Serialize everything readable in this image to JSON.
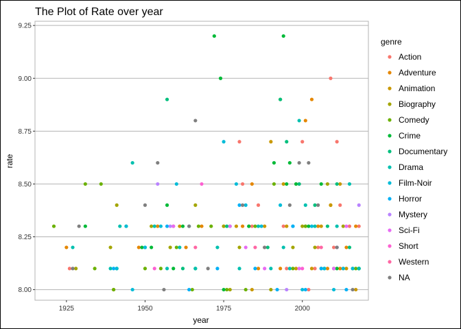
{
  "chart_data": {
    "type": "scatter",
    "title": "The Plot of Rate over year",
    "xlabel": "year",
    "ylabel": "rate",
    "xlim": [
      1915,
      2021
    ],
    "ylim": [
      7.95,
      9.27
    ],
    "xticks": [
      1925,
      1950,
      1975,
      2000
    ],
    "xtick_labels": [
      "1925",
      "1950",
      "1975",
      "2000"
    ],
    "yticks": [
      8.0,
      8.25,
      8.5,
      8.75,
      9.0,
      9.25
    ],
    "ytick_labels": [
      "8.00",
      "8.25",
      "8.50",
      "8.75",
      "9.00",
      "9.25"
    ],
    "grid": true,
    "legend": {
      "title": "genre",
      "position": "right",
      "entries": [
        "Action",
        "Adventure",
        "Animation",
        "Biography",
        "Comedy",
        "Crime",
        "Documentary",
        "Drama",
        "Film-Noir",
        "Horror",
        "Mystery",
        "Sci-Fi",
        "Short",
        "Western",
        "NA"
      ]
    },
    "colors": {
      "Action": "#F8766D",
      "Adventure": "#E58700",
      "Animation": "#C99800",
      "Biography": "#A3A500",
      "Comedy": "#6BB100",
      "Crime": "#00BA38",
      "Documentary": "#00BF7D",
      "Drama": "#00C0AF",
      "Film-Noir": "#00BCD8",
      "Horror": "#00B0F6",
      "Mystery": "#B983FF",
      "Sci-Fi": "#E76BF3",
      "Short": "#FD61D1",
      "Western": "#FF67A4",
      "NA": "#7F7F7F"
    },
    "series": [
      {
        "name": "Action",
        "points": [
          [
            1926,
            8.1
          ],
          [
            1980,
            8.7
          ],
          [
            1981,
            8.5
          ],
          [
            1984,
            8.3
          ],
          [
            1986,
            8.4
          ],
          [
            1988,
            8.2
          ],
          [
            1994,
            8.3
          ],
          [
            1995,
            8.1
          ],
          [
            1999,
            8.5
          ],
          [
            2000,
            8.7
          ],
          [
            2002,
            8.0
          ],
          [
            2004,
            8.1
          ],
          [
            2005,
            8.2
          ],
          [
            2009,
            9.0
          ],
          [
            2010,
            8.2
          ],
          [
            2011,
            8.7
          ],
          [
            2012,
            8.4
          ],
          [
            2013,
            8.1
          ],
          [
            2015,
            8.3
          ],
          [
            2018,
            8.3
          ]
        ]
      },
      {
        "name": "Adventure",
        "points": [
          [
            1925,
            8.2
          ],
          [
            1940,
            8.0
          ],
          [
            1948,
            8.2
          ],
          [
            1954,
            8.3
          ],
          [
            1959,
            8.3
          ],
          [
            1963,
            8.2
          ],
          [
            1968,
            8.3
          ],
          [
            1975,
            8.3
          ],
          [
            1981,
            8.3
          ],
          [
            1984,
            8.5
          ],
          [
            1986,
            8.1
          ],
          [
            1993,
            8.1
          ],
          [
            2001,
            8.8
          ],
          [
            2003,
            8.9
          ],
          [
            2005,
            8.3
          ],
          [
            2008,
            8.1
          ],
          [
            2009,
            8.4
          ],
          [
            2012,
            8.1
          ],
          [
            2014,
            8.2
          ],
          [
            2017,
            8.3
          ]
        ]
      },
      {
        "name": "Animation",
        "points": [
          [
            1961,
            8.3
          ],
          [
            1979,
            8.3
          ],
          [
            1984,
            8.0
          ],
          [
            1988,
            8.3
          ],
          [
            1990,
            8.7
          ],
          [
            1994,
            8.5
          ],
          [
            1995,
            8.3
          ],
          [
            1998,
            8.1
          ],
          [
            2001,
            8.3
          ],
          [
            2003,
            8.1
          ],
          [
            2006,
            8.3
          ],
          [
            2009,
            8.4
          ],
          [
            2012,
            8.5
          ],
          [
            2014,
            8.1
          ],
          [
            2017,
            8.0
          ]
        ]
      },
      {
        "name": "Biography",
        "points": [
          [
            1928,
            8.1
          ],
          [
            1939,
            8.2
          ],
          [
            1941,
            8.4
          ],
          [
            1952,
            8.3
          ],
          [
            1958,
            8.2
          ],
          [
            1966,
            8.4
          ],
          [
            1975,
            8.3
          ],
          [
            1977,
            8.0
          ],
          [
            1980,
            8.2
          ],
          [
            1983,
            8.3
          ],
          [
            1990,
            8.0
          ],
          [
            1993,
            8.9
          ],
          [
            1997,
            8.2
          ],
          [
            1998,
            8.5
          ],
          [
            2000,
            8.3
          ],
          [
            2004,
            8.2
          ],
          [
            2008,
            8.5
          ],
          [
            2013,
            8.3
          ],
          [
            2016,
            8.1
          ]
        ]
      },
      {
        "name": "Comedy",
        "points": [
          [
            1921,
            8.3
          ],
          [
            1931,
            8.5
          ],
          [
            1934,
            8.1
          ],
          [
            1936,
            8.5
          ],
          [
            1940,
            8.0
          ],
          [
            1944,
            8.3
          ],
          [
            1950,
            8.1
          ],
          [
            1955,
            8.1
          ],
          [
            1960,
            8.2
          ],
          [
            1965,
            8.0
          ],
          [
            1967,
            8.3
          ],
          [
            1971,
            8.3
          ],
          [
            1976,
            8.0
          ],
          [
            1982,
            8.0
          ],
          [
            1985,
            8.3
          ],
          [
            1991,
            8.5
          ],
          [
            1997,
            8.1
          ],
          [
            2001,
            8.3
          ],
          [
            2006,
            8.1
          ],
          [
            2010,
            8.1
          ],
          [
            2017,
            8.1
          ]
        ]
      },
      {
        "name": "Crime",
        "points": [
          [
            1931,
            8.3
          ],
          [
            1941,
            8.1
          ],
          [
            1949,
            8.2
          ],
          [
            1952,
            8.2
          ],
          [
            1957,
            8.4
          ],
          [
            1959,
            8.1
          ],
          [
            1962,
            8.3
          ],
          [
            1966,
            8.1
          ],
          [
            1972,
            9.2
          ],
          [
            1974,
            9.0
          ],
          [
            1975,
            8.0
          ],
          [
            1983,
            8.3
          ],
          [
            1991,
            8.6
          ],
          [
            1994,
            9.2
          ],
          [
            1995,
            8.5
          ],
          [
            1996,
            8.6
          ],
          [
            1998,
            8.5
          ],
          [
            2002,
            8.3
          ],
          [
            2006,
            8.5
          ],
          [
            2011,
            8.1
          ],
          [
            2018,
            8.1
          ]
        ]
      },
      {
        "name": "Documentary",
        "points": [
          [
            1957,
            8.9
          ],
          [
            1962,
            8.1
          ],
          [
            1976,
            8.3
          ],
          [
            1989,
            8.2
          ],
          [
            1993,
            8.9
          ],
          [
            1995,
            8.7
          ],
          [
            1999,
            8.5
          ],
          [
            2004,
            8.4
          ],
          [
            2008,
            8.3
          ],
          [
            2011,
            8.5
          ],
          [
            2015,
            8.2
          ],
          [
            2018,
            8.1
          ]
        ]
      },
      {
        "name": "Drama",
        "points": [
          [
            1927,
            8.2
          ],
          [
            1939,
            8.1
          ],
          [
            1942,
            8.3
          ],
          [
            1946,
            8.6
          ],
          [
            1950,
            8.2
          ],
          [
            1953,
            8.3
          ],
          [
            1957,
            8.1
          ],
          [
            1961,
            8.2
          ],
          [
            1966,
            8.1
          ],
          [
            1973,
            8.2
          ],
          [
            1977,
            8.3
          ],
          [
            1980,
            8.1
          ],
          [
            1986,
            8.3
          ],
          [
            1990,
            8.1
          ],
          [
            1994,
            8.2
          ],
          [
            1996,
            8.1
          ],
          [
            1999,
            8.8
          ],
          [
            2001,
            8.4
          ],
          [
            2004,
            8.3
          ],
          [
            2007,
            8.1
          ],
          [
            2011,
            8.3
          ],
          [
            2015,
            8.5
          ],
          [
            2018,
            8.1
          ]
        ]
      },
      {
        "name": "Film-Noir",
        "points": [
          [
            1941,
            8.1
          ],
          [
            1944,
            8.3
          ],
          [
            1946,
            8.0
          ],
          [
            1950,
            8.2
          ],
          [
            1955,
            8.3
          ],
          [
            1960,
            8.5
          ],
          [
            1964,
            8.3
          ],
          [
            1975,
            8.7
          ],
          [
            1979,
            8.5
          ],
          [
            1982,
            8.4
          ],
          [
            1987,
            8.3
          ],
          [
            1993,
            8.4
          ],
          [
            1997,
            8.3
          ],
          [
            2000,
            8.0
          ],
          [
            2003,
            8.3
          ],
          [
            2007,
            8.1
          ],
          [
            2010,
            8.0
          ],
          [
            2013,
            8.1
          ],
          [
            2016,
            8.1
          ]
        ]
      },
      {
        "name": "Horror",
        "points": [
          [
            1940,
            8.1
          ],
          [
            1957,
            8.3
          ],
          [
            1964,
            8.0
          ],
          [
            1973,
            8.1
          ],
          [
            1980,
            8.4
          ],
          [
            1985,
            8.1
          ],
          [
            1992,
            8.0
          ],
          [
            1997,
            8.3
          ],
          [
            2001,
            8.0
          ],
          [
            2006,
            8.1
          ],
          [
            2011,
            8.2
          ],
          [
            2014,
            8.0
          ]
        ]
      },
      {
        "name": "Mystery",
        "points": [
          [
            1954,
            8.5
          ],
          [
            1958,
            8.3
          ],
          [
            1995,
            8.0
          ],
          [
            2011,
            8.2
          ],
          [
            2018,
            8.4
          ]
        ]
      },
      {
        "name": "Sci-Fi",
        "points": [
          [
            1959,
            8.3
          ],
          [
            1977,
            8.3
          ],
          [
            1982,
            8.2
          ],
          [
            1988,
            8.1
          ],
          [
            1999,
            8.1
          ],
          [
            2010,
            8.1
          ],
          [
            2014,
            8.3
          ]
        ]
      },
      {
        "name": "Short",
        "points": [
          [
            1953,
            8.1
          ],
          [
            1968,
            8.5
          ],
          [
            2000,
            8.1
          ]
        ]
      },
      {
        "name": "Western",
        "points": [
          [
            1966,
            8.2
          ],
          [
            1985,
            8.2
          ],
          [
            2006,
            8.2
          ]
        ]
      },
      {
        "name": "NA",
        "points": [
          [
            1927,
            8.1
          ],
          [
            1929,
            8.3
          ],
          [
            1950,
            8.4
          ],
          [
            1954,
            8.6
          ],
          [
            1956,
            8.0
          ],
          [
            1964,
            8.3
          ],
          [
            1966,
            8.8
          ],
          [
            1970,
            8.1
          ],
          [
            1981,
            8.4
          ],
          [
            1988,
            8.2
          ],
          [
            1996,
            8.4
          ],
          [
            1999,
            8.6
          ],
          [
            2002,
            8.6
          ],
          [
            2005,
            8.4
          ],
          [
            2011,
            8.2
          ],
          [
            2016,
            8.0
          ]
        ]
      }
    ]
  }
}
